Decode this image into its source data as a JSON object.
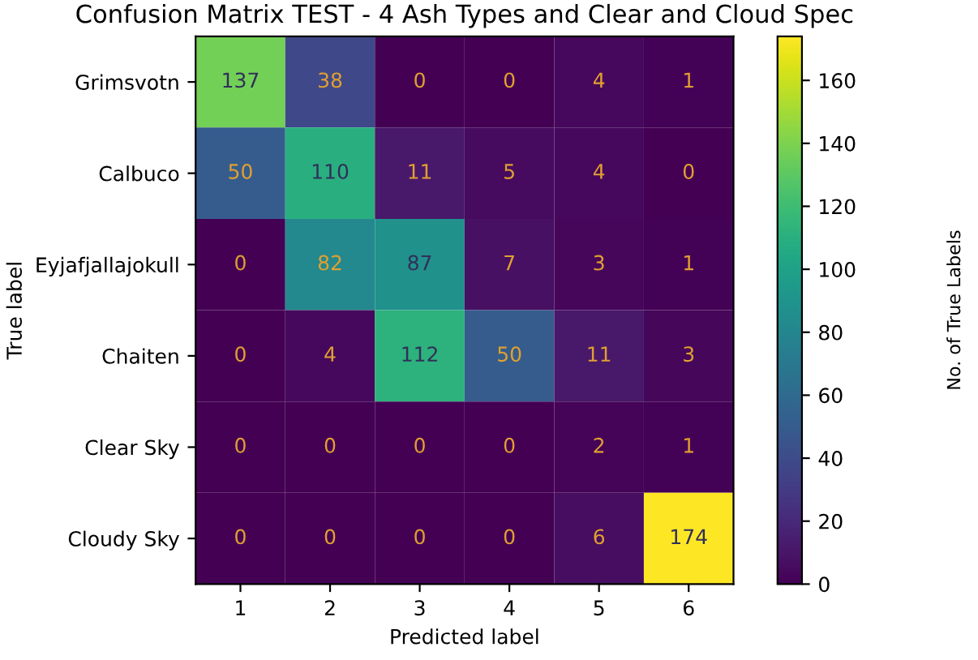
{
  "chart_data": {
    "type": "heatmap",
    "title": "Confusion Matrix TEST - 4 Ash Types and Clear and Cloud Spec",
    "xlabel": "Predicted label",
    "ylabel": "True label",
    "clabel": "No. of True Labels",
    "categories": [
      "1",
      "2",
      "3",
      "4",
      "5",
      "6"
    ],
    "y_categories": [
      "Grimsvotn",
      "Calbuco",
      "Eyjafjallajokull",
      "Chaiten",
      "Clear Sky",
      "Cloudy Sky"
    ],
    "cells": [
      [
        137,
        38,
        0,
        0,
        4,
        1
      ],
      [
        50,
        110,
        11,
        5,
        4,
        0
      ],
      [
        0,
        82,
        87,
        7,
        3,
        1
      ],
      [
        0,
        4,
        112,
        50,
        11,
        3
      ],
      [
        0,
        0,
        0,
        0,
        2,
        1
      ],
      [
        0,
        0,
        0,
        0,
        6,
        174
      ]
    ],
    "data_labels": true,
    "clim": [
      0,
      174
    ],
    "cticks": [
      0,
      20,
      40,
      60,
      80,
      100,
      120,
      140,
      160
    ]
  }
}
